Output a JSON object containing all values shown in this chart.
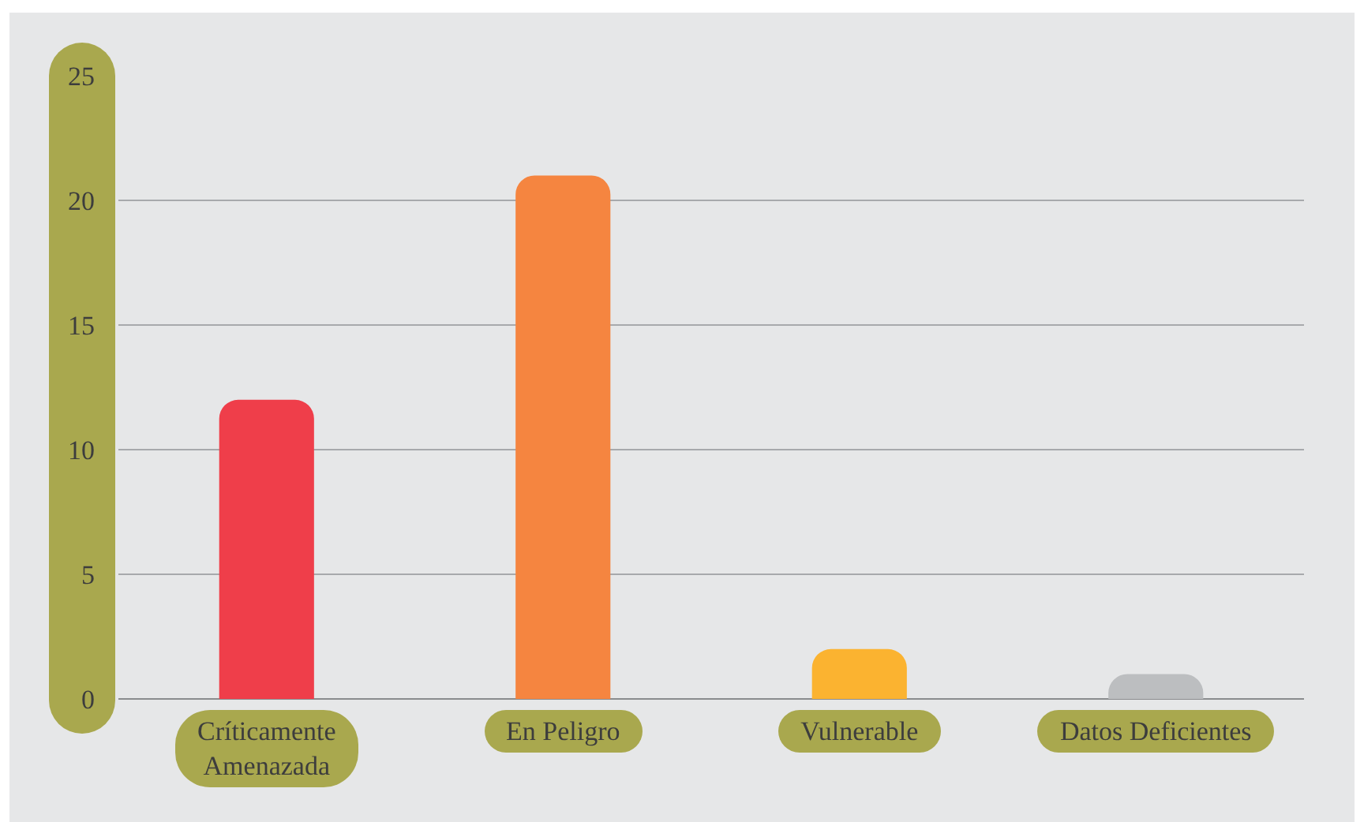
{
  "chart_data": {
    "type": "bar",
    "categories": [
      "Críticamente Amenazada",
      "En Peligro",
      "Vulnerable",
      "Datos Deficientes"
    ],
    "values": [
      12,
      21,
      2,
      1
    ],
    "colors": [
      "#ef3e4a",
      "#f58540",
      "#fbb330",
      "#bcbec0"
    ],
    "ylim": [
      0,
      25
    ],
    "yticks": [
      0,
      5,
      10,
      15,
      20,
      25
    ],
    "grid": "y"
  }
}
